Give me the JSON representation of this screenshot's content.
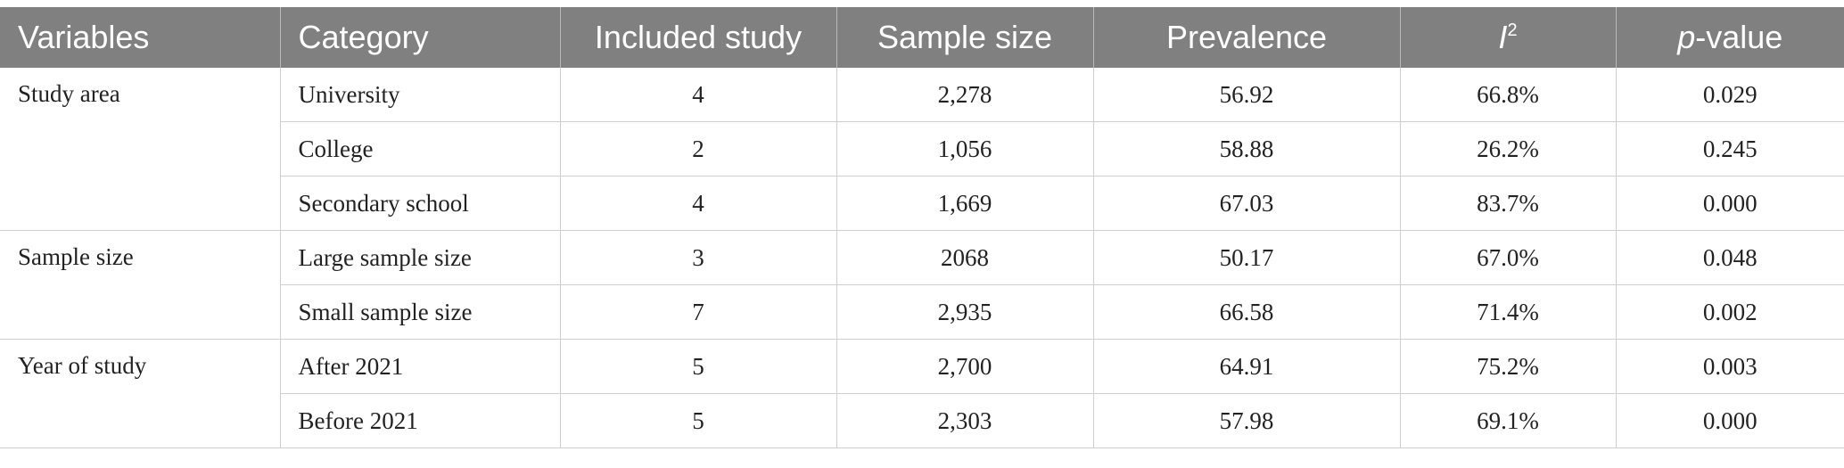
{
  "header": {
    "variables": "Variables",
    "category": "Category",
    "included_study": "Included study",
    "sample_size": "Sample size",
    "prevalence": "Prevalence",
    "i2_letter": "I",
    "i2_sup": "2",
    "p_letter": "p",
    "p_rest": "-value"
  },
  "groups": [
    {
      "variable": "Study area",
      "rows": [
        {
          "category": "University",
          "included": "4",
          "sample": "2,278",
          "prevalence": "56.92",
          "i2": "66.8%",
          "p": "0.029"
        },
        {
          "category": "College",
          "included": "2",
          "sample": "1,056",
          "prevalence": "58.88",
          "i2": "26.2%",
          "p": "0.245"
        },
        {
          "category": "Secondary school",
          "included": "4",
          "sample": "1,669",
          "prevalence": "67.03",
          "i2": "83.7%",
          "p": "0.000"
        }
      ]
    },
    {
      "variable": "Sample size",
      "rows": [
        {
          "category": "Large sample size",
          "included": "3",
          "sample": "2068",
          "prevalence": "50.17",
          "i2": "67.0%",
          "p": "0.048"
        },
        {
          "category": "Small sample size",
          "included": "7",
          "sample": "2,935",
          "prevalence": "66.58",
          "i2": "71.4%",
          "p": "0.002"
        }
      ]
    },
    {
      "variable": "Year of study",
      "rows": [
        {
          "category": "After 2021",
          "included": "5",
          "sample": "2,700",
          "prevalence": "64.91",
          "i2": "75.2%",
          "p": "0.003"
        },
        {
          "category": "Before 2021",
          "included": "5",
          "sample": "2,303",
          "prevalence": "57.98",
          "i2": "69.1%",
          "p": "0.000"
        }
      ]
    }
  ]
}
